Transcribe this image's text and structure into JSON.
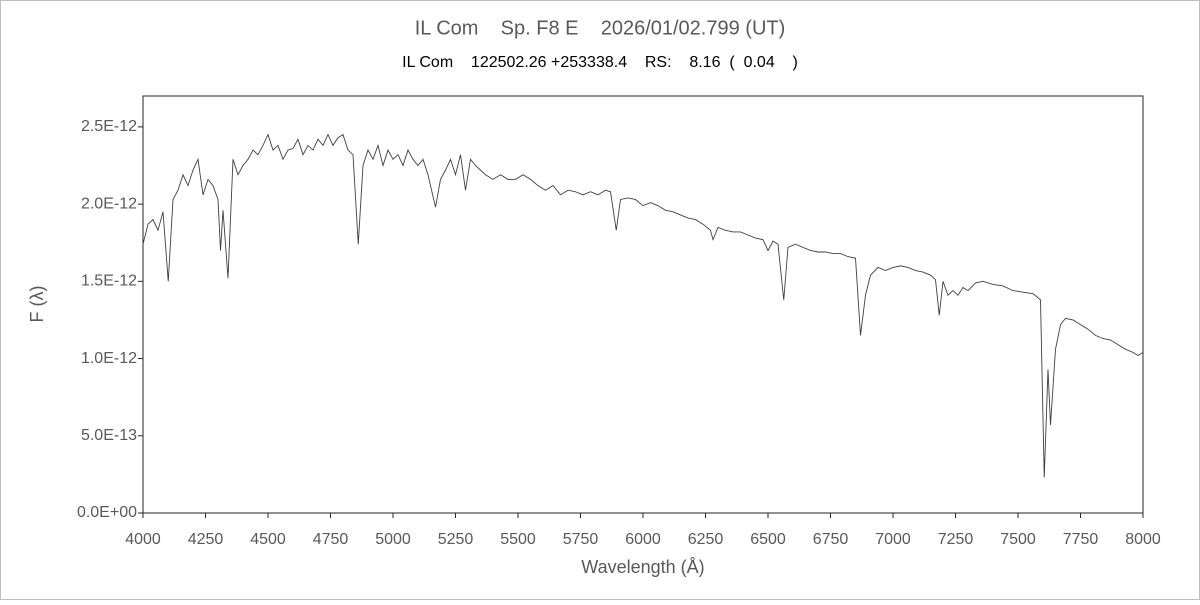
{
  "chart_data": {
    "type": "line",
    "title": "IL Com    Sp. F8 E    2026/01/02.799 (UT)",
    "subtitle": "IL Com    122502.26 +253338.4    RS:    8.16  (  0.04    )",
    "x_label": "Wavelength (Å)",
    "y_label": "F (λ)",
    "xlim": [
      4000,
      8000
    ],
    "xticks": [
      4000,
      4250,
      4500,
      4750,
      5000,
      5250,
      5500,
      5750,
      6000,
      6250,
      6500,
      6750,
      7000,
      7250,
      7500,
      7750,
      8000
    ],
    "ylim": [
      0,
      2.7e-12
    ],
    "yticks": [
      {
        "value": 0,
        "label": "0.0E+00"
      },
      {
        "value": 5e-13,
        "label": "5.0E-13"
      },
      {
        "value": 1e-12,
        "label": "1.0E-12"
      },
      {
        "value": 1.5e-12,
        "label": "1.5E-12"
      },
      {
        "value": 2e-12,
        "label": "2.0E-12"
      },
      {
        "value": 2.5e-12,
        "label": "2.5E-12"
      }
    ],
    "grid": false,
    "series": [
      {
        "color": "#404040",
        "x": [
          4000,
          4020,
          4040,
          4060,
          4080,
          4101,
          4120,
          4140,
          4160,
          4180,
          4200,
          4220,
          4240,
          4260,
          4280,
          4300,
          4310,
          4320,
          4340,
          4360,
          4380,
          4400,
          4420,
          4440,
          4460,
          4480,
          4500,
          4520,
          4540,
          4560,
          4580,
          4600,
          4620,
          4640,
          4660,
          4680,
          4700,
          4720,
          4740,
          4760,
          4780,
          4800,
          4820,
          4840,
          4861,
          4880,
          4900,
          4920,
          4940,
          4960,
          4980,
          5000,
          5020,
          5040,
          5060,
          5080,
          5100,
          5120,
          5140,
          5170,
          5190,
          5210,
          5230,
          5250,
          5270,
          5290,
          5310,
          5330,
          5350,
          5370,
          5400,
          5430,
          5460,
          5490,
          5520,
          5550,
          5580,
          5610,
          5640,
          5670,
          5700,
          5730,
          5760,
          5790,
          5820,
          5850,
          5870,
          5893,
          5910,
          5940,
          5970,
          6000,
          6030,
          6060,
          6090,
          6120,
          6150,
          6180,
          6210,
          6240,
          6270,
          6280,
          6300,
          6330,
          6360,
          6390,
          6420,
          6450,
          6480,
          6500,
          6520,
          6540,
          6563,
          6580,
          6610,
          6640,
          6670,
          6700,
          6730,
          6760,
          6790,
          6820,
          6850,
          6870,
          6890,
          6910,
          6940,
          6970,
          7000,
          7030,
          7060,
          7090,
          7120,
          7150,
          7170,
          7185,
          7200,
          7220,
          7240,
          7260,
          7280,
          7300,
          7330,
          7360,
          7400,
          7440,
          7480,
          7520,
          7560,
          7590,
          7605,
          7620,
          7630,
          7650,
          7670,
          7690,
          7720,
          7750,
          7780,
          7810,
          7840,
          7870,
          7900,
          7930,
          7960,
          7980,
          8000
        ],
        "values": [
          1.74e-12,
          1.87e-12,
          1.9e-12,
          1.83e-12,
          1.95e-12,
          1.5e-12,
          2.03e-12,
          2.09e-12,
          2.19e-12,
          2.12e-12,
          2.22e-12,
          2.29e-12,
          2.06e-12,
          2.16e-12,
          2.12e-12,
          2.03e-12,
          1.7e-12,
          1.96e-12,
          1.52e-12,
          2.29e-12,
          2.19e-12,
          2.25e-12,
          2.29e-12,
          2.35e-12,
          2.32e-12,
          2.38e-12,
          2.45e-12,
          2.35e-12,
          2.38e-12,
          2.29e-12,
          2.35e-12,
          2.36e-12,
          2.42e-12,
          2.32e-12,
          2.38e-12,
          2.35e-12,
          2.42e-12,
          2.38e-12,
          2.45e-12,
          2.38e-12,
          2.43e-12,
          2.45e-12,
          2.35e-12,
          2.32e-12,
          1.74e-12,
          2.25e-12,
          2.35e-12,
          2.29e-12,
          2.38e-12,
          2.25e-12,
          2.35e-12,
          2.29e-12,
          2.32e-12,
          2.25e-12,
          2.35e-12,
          2.29e-12,
          2.25e-12,
          2.29e-12,
          2.19e-12,
          1.98e-12,
          2.16e-12,
          2.22e-12,
          2.29e-12,
          2.19e-12,
          2.32e-12,
          2.09e-12,
          2.29e-12,
          2.25e-12,
          2.22e-12,
          2.19e-12,
          2.16e-12,
          2.19e-12,
          2.16e-12,
          2.16e-12,
          2.19e-12,
          2.16e-12,
          2.12e-12,
          2.09e-12,
          2.12e-12,
          2.06e-12,
          2.09e-12,
          2.08e-12,
          2.06e-12,
          2.08e-12,
          2.06e-12,
          2.09e-12,
          2.08e-12,
          1.83e-12,
          2.03e-12,
          2.04e-12,
          2.03e-12,
          1.99e-12,
          2.01e-12,
          1.99e-12,
          1.96e-12,
          1.95e-12,
          1.93e-12,
          1.91e-12,
          1.9e-12,
          1.87e-12,
          1.83e-12,
          1.77e-12,
          1.85e-12,
          1.83e-12,
          1.82e-12,
          1.82e-12,
          1.8e-12,
          1.78e-12,
          1.77e-12,
          1.7e-12,
          1.76e-12,
          1.74e-12,
          1.38e-12,
          1.72e-12,
          1.74e-12,
          1.72e-12,
          1.7e-12,
          1.69e-12,
          1.69e-12,
          1.68e-12,
          1.68e-12,
          1.66e-12,
          1.65e-12,
          1.15e-12,
          1.41e-12,
          1.54e-12,
          1.59e-12,
          1.57e-12,
          1.59e-12,
          1.6e-12,
          1.59e-12,
          1.57e-12,
          1.56e-12,
          1.54e-12,
          1.51e-12,
          1.28e-12,
          1.5e-12,
          1.41e-12,
          1.44e-12,
          1.41e-12,
          1.46e-12,
          1.44e-12,
          1.49e-12,
          1.5e-12,
          1.48e-12,
          1.47e-12,
          1.44e-12,
          1.43e-12,
          1.42e-12,
          1.38e-12,
          2.3e-13,
          9.3e-13,
          5.7e-13,
          1.06e-12,
          1.22e-12,
          1.26e-12,
          1.25e-12,
          1.22e-12,
          1.19e-12,
          1.15e-12,
          1.13e-12,
          1.12e-12,
          1.09e-12,
          1.06e-12,
          1.04e-12,
          1.02e-12,
          1.04e-12
        ]
      }
    ]
  }
}
